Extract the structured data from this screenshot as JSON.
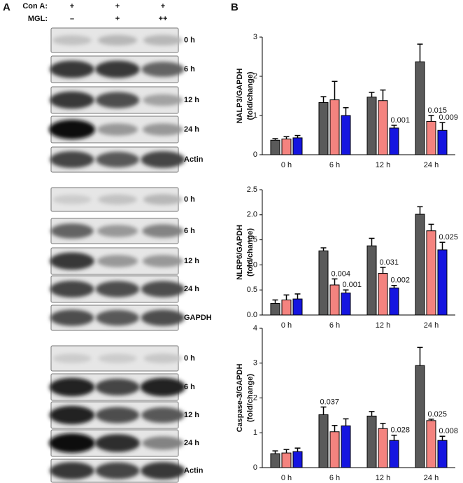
{
  "panel_a": {
    "label": "A",
    "header": [
      {
        "name": "Con A:",
        "marks": [
          "+",
          "+",
          "+"
        ]
      },
      {
        "name": "MGL:",
        "marks": [
          "–",
          "+",
          "++"
        ]
      }
    ],
    "blots": [
      {
        "labels": [
          "0 h",
          "6 h",
          "12 h",
          "24 h",
          "Actin"
        ]
      },
      {
        "labels": [
          "0 h",
          "6 h",
          "12 h",
          "24 h",
          "GAPDH"
        ]
      },
      {
        "labels": [
          "0 h",
          "6 h",
          "12 h",
          "24 h",
          "Actin"
        ]
      }
    ]
  },
  "panel_b_label": "B",
  "chart_data": [
    {
      "type": "bar",
      "ylabel": [
        "NALP3/GAPDH",
        "(fold/change)"
      ],
      "categories": [
        "0 h",
        "6 h",
        "12 h",
        "24 h"
      ],
      "ylim": [
        0,
        3
      ],
      "yticks": [
        0,
        1,
        2,
        3
      ],
      "series": [
        {
          "color": "#5a5a5a",
          "values": [
            0.37,
            1.33,
            1.47,
            2.37
          ],
          "errors": [
            0.04,
            0.15,
            0.12,
            0.45
          ],
          "p_values": [
            null,
            null,
            null,
            null
          ]
        },
        {
          "color": "#f4837f",
          "values": [
            0.4,
            1.4,
            1.38,
            0.85
          ],
          "errors": [
            0.06,
            0.47,
            0.27,
            0.15
          ],
          "p_values": [
            null,
            null,
            null,
            "0.015"
          ]
        },
        {
          "color": "#1515e0",
          "values": [
            0.43,
            1.0,
            0.68,
            0.62
          ],
          "errors": [
            0.06,
            0.2,
            0.07,
            0.2
          ],
          "p_values": [
            null,
            null,
            "0.001",
            "0.009"
          ]
        }
      ]
    },
    {
      "type": "bar",
      "ylabel": [
        "NLRP6/GAPDH",
        "(fold/change)"
      ],
      "categories": [
        "0 h",
        "6 h",
        "12 h",
        "24 h"
      ],
      "ylim": [
        0,
        2.5
      ],
      "yticks": [
        {
          "value": 0,
          "label": "0.0"
        },
        0.5,
        {
          "value": 1,
          "label": "1.0"
        },
        1.5,
        {
          "value": 2,
          "label": "2.0"
        },
        2.5
      ],
      "series": [
        {
          "color": "#5a5a5a",
          "values": [
            0.23,
            1.28,
            1.38,
            2.01
          ],
          "errors": [
            0.07,
            0.06,
            0.15,
            0.15
          ],
          "p_values": [
            null,
            null,
            null,
            null
          ]
        },
        {
          "color": "#f4837f",
          "values": [
            0.3,
            0.6,
            0.83,
            1.68
          ],
          "errors": [
            0.1,
            0.12,
            0.12,
            0.13
          ],
          "p_values": [
            null,
            "0.004",
            "0.031",
            null
          ]
        },
        {
          "color": "#1515e0",
          "values": [
            0.32,
            0.44,
            0.54,
            1.3
          ],
          "errors": [
            0.1,
            0.06,
            0.05,
            0.15
          ],
          "p_values": [
            null,
            "0.001",
            "0.002",
            "0.025"
          ]
        }
      ]
    },
    {
      "type": "bar",
      "ylabel": [
        "Caspase-3/GAPDH",
        "(fold/change)"
      ],
      "categories": [
        "0 h",
        "6 h",
        "12 h",
        "24 h"
      ],
      "ylim": [
        0,
        4
      ],
      "yticks": [
        0,
        1,
        2,
        3,
        4
      ],
      "series": [
        {
          "color": "#5a5a5a",
          "values": [
            0.4,
            1.52,
            1.48,
            2.93
          ],
          "errors": [
            0.08,
            0.22,
            0.13,
            0.52
          ],
          "p_values": [
            null,
            "0.037",
            null,
            null
          ]
        },
        {
          "color": "#f4837f",
          "values": [
            0.42,
            1.03,
            1.12,
            1.35
          ],
          "errors": [
            0.1,
            0.18,
            0.15,
            0.04
          ],
          "p_values": [
            null,
            null,
            null,
            "0.025"
          ]
        },
        {
          "color": "#1515e0",
          "values": [
            0.46,
            1.2,
            0.78,
            0.78
          ],
          "errors": [
            0.1,
            0.2,
            0.15,
            0.12
          ],
          "p_values": [
            null,
            null,
            "0.028",
            "0.008"
          ]
        }
      ]
    }
  ]
}
